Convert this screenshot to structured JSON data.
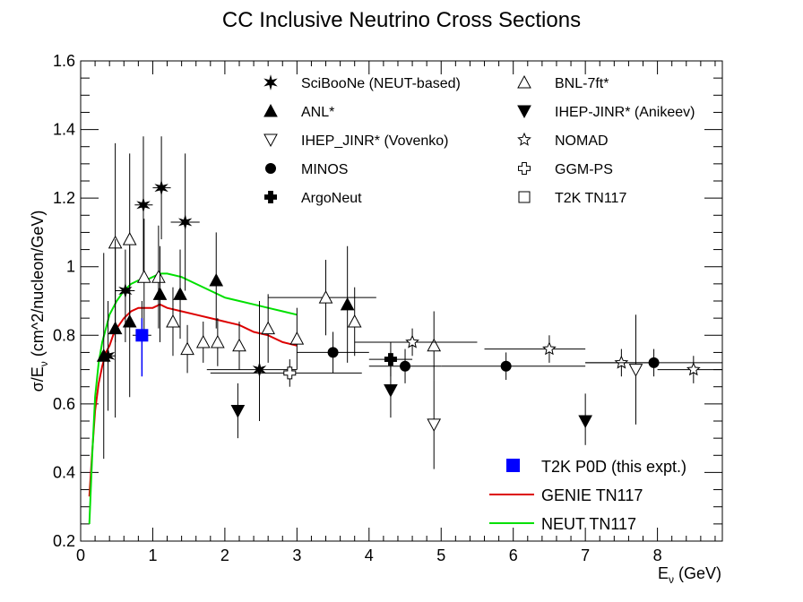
{
  "chart_data": {
    "type": "scatter",
    "title": "CC Inclusive Neutrino Cross Sections",
    "ylabel": "σ/E",
    "ylabel_sub": "ν",
    "ylabel_tail": " (cm^2/nucleon/GeV)",
    "xlabel": "E",
    "xlabel_sub": "ν",
    "xlabel_tail": " (GeV)",
    "xlim": [
      0,
      8.9
    ],
    "ylim": [
      0.2,
      1.6
    ],
    "x_ticks": [
      {
        "v": 0,
        "label": "0"
      },
      {
        "v": 1,
        "label": "1"
      },
      {
        "v": 2,
        "label": "2"
      },
      {
        "v": 3,
        "label": "3"
      },
      {
        "v": 4,
        "label": "4"
      },
      {
        "v": 5,
        "label": "5"
      },
      {
        "v": 6,
        "label": "6"
      },
      {
        "v": 7,
        "label": "7"
      },
      {
        "v": 8,
        "label": "8"
      }
    ],
    "y_ticks": [
      {
        "v": 0.2,
        "label": "0.2"
      },
      {
        "v": 0.4,
        "label": "0.4"
      },
      {
        "v": 0.6,
        "label": "0.6"
      },
      {
        "v": 0.8,
        "label": "0.8"
      },
      {
        "v": 1.0,
        "label": "1"
      },
      {
        "v": 1.2,
        "label": "1.2"
      },
      {
        "v": 1.4,
        "label": "1.4"
      },
      {
        "v": 1.6,
        "label": "1.6"
      }
    ],
    "grid": false,
    "legend_top": [
      {
        "key": "sciboone",
        "name": "SciBooNe (NEUT-based)",
        "marker": "star6",
        "fill": "#000000"
      },
      {
        "key": "bnl",
        "name": "BNL-7ft*",
        "marker": "triangle-up",
        "fill": "#ffffff"
      },
      {
        "key": "anl",
        "name": "ANL*",
        "marker": "triangle-up",
        "fill": "#000000"
      },
      {
        "key": "ihep_anikeev",
        "name": "IHEP-JINR* (Anikeev)",
        "marker": "triangle-down",
        "fill": "#000000"
      },
      {
        "key": "ihep_vovenko",
        "name": "IHEP_JINR* (Vovenko)",
        "marker": "triangle-down",
        "fill": "#ffffff"
      },
      {
        "key": "nomad",
        "name": "NOMAD",
        "marker": "star5",
        "fill": "#ffffff"
      },
      {
        "key": "minos",
        "name": "MINOS",
        "marker": "circle",
        "fill": "#000000"
      },
      {
        "key": "ggm",
        "name": "GGM-PS",
        "marker": "cross",
        "fill": "#ffffff"
      },
      {
        "key": "argoneut",
        "name": "ArgoNeut",
        "marker": "cross",
        "fill": "#000000"
      },
      {
        "key": "t2k_tn117",
        "name": "T2K TN117",
        "marker": "square",
        "fill": "#ffffff"
      }
    ],
    "legend_bottom": [
      {
        "key": "t2k_p0d",
        "name": "T2K P0D (this expt.)",
        "kind": "marker",
        "color": "#0000ff"
      },
      {
        "key": "genie",
        "name": "GENIE TN117",
        "kind": "line",
        "color": "#dd0000"
      },
      {
        "key": "neut",
        "name": "NEUT TN117",
        "kind": "line",
        "color": "#00e000"
      }
    ],
    "points": [
      {
        "series": "sciboone",
        "x": 0.38,
        "y": 0.74,
        "xlo": 0.28,
        "xhi": 0.48,
        "ylo": 0.58,
        "yhi": 0.9
      },
      {
        "series": "sciboone",
        "x": 0.62,
        "y": 0.93,
        "xlo": 0.48,
        "xhi": 0.75,
        "ylo": 0.78,
        "yhi": 1.05
      },
      {
        "series": "sciboone",
        "x": 0.87,
        "y": 1.18,
        "xlo": 0.75,
        "xhi": 1.0,
        "ylo": 0.98,
        "yhi": 1.38
      },
      {
        "series": "sciboone",
        "x": 1.12,
        "y": 1.23,
        "xlo": 1.0,
        "xhi": 1.25,
        "ylo": 1.08,
        "yhi": 1.38
      },
      {
        "series": "sciboone",
        "x": 1.45,
        "y": 1.13,
        "xlo": 1.25,
        "xhi": 1.65,
        "ylo": 0.93,
        "yhi": 1.33
      },
      {
        "series": "sciboone",
        "x": 2.48,
        "y": 0.7,
        "xlo": 1.75,
        "xhi": 3.0,
        "ylo": 0.55,
        "yhi": 0.9
      },
      {
        "series": "bnl",
        "x": 0.48,
        "y": 1.07,
        "ylo": 0.78,
        "yhi": 1.36
      },
      {
        "series": "bnl",
        "x": 0.68,
        "y": 1.08,
        "ylo": 0.83,
        "yhi": 1.33
      },
      {
        "series": "bnl",
        "x": 0.88,
        "y": 0.97,
        "ylo": 0.8,
        "yhi": 1.14
      },
      {
        "series": "bnl",
        "x": 1.08,
        "y": 0.97,
        "ylo": 0.82,
        "yhi": 1.12
      },
      {
        "series": "bnl",
        "x": 1.28,
        "y": 0.84,
        "ylo": 0.74,
        "yhi": 0.94
      },
      {
        "series": "bnl",
        "x": 1.48,
        "y": 0.76,
        "ylo": 0.69,
        "yhi": 0.83
      },
      {
        "series": "bnl",
        "x": 1.7,
        "y": 0.78,
        "ylo": 0.72,
        "yhi": 0.84
      },
      {
        "series": "bnl",
        "x": 1.9,
        "y": 0.78,
        "ylo": 0.71,
        "yhi": 0.85
      },
      {
        "series": "bnl",
        "x": 2.2,
        "y": 0.77,
        "ylo": 0.7,
        "yhi": 0.84
      },
      {
        "series": "bnl",
        "x": 2.6,
        "y": 0.82,
        "ylo": 0.72,
        "yhi": 0.92
      },
      {
        "series": "bnl",
        "x": 3.0,
        "y": 0.79,
        "ylo": 0.7,
        "yhi": 0.88
      },
      {
        "series": "bnl",
        "x": 3.4,
        "y": 0.91,
        "xlo": 2.6,
        "xhi": 4.1,
        "ylo": 0.8,
        "yhi": 1.02
      },
      {
        "series": "bnl",
        "x": 3.8,
        "y": 0.84,
        "ylo": 0.74,
        "yhi": 0.94
      },
      {
        "series": "bnl",
        "x": 4.9,
        "y": 0.77,
        "ylo": 0.67,
        "yhi": 0.87
      },
      {
        "series": "anl",
        "x": 0.32,
        "y": 0.74,
        "ylo": 0.44,
        "yhi": 1.04
      },
      {
        "series": "anl",
        "x": 0.48,
        "y": 0.82,
        "ylo": 0.56,
        "yhi": 1.08
      },
      {
        "series": "anl",
        "x": 0.68,
        "y": 0.84,
        "ylo": 0.62,
        "yhi": 1.06
      },
      {
        "series": "anl",
        "x": 1.1,
        "y": 0.92,
        "ylo": 0.78,
        "yhi": 1.06
      },
      {
        "series": "anl",
        "x": 1.38,
        "y": 0.92,
        "ylo": 0.79,
        "yhi": 1.05
      },
      {
        "series": "anl",
        "x": 1.88,
        "y": 0.96,
        "ylo": 0.82,
        "yhi": 1.1
      },
      {
        "series": "anl",
        "x": 3.7,
        "y": 0.89,
        "ylo": 0.72,
        "yhi": 1.06
      },
      {
        "series": "ihep_anikeev",
        "x": 2.18,
        "y": 0.58,
        "ylo": 0.5,
        "yhi": 0.66
      },
      {
        "series": "ihep_anikeev",
        "x": 4.3,
        "y": 0.64,
        "ylo": 0.56,
        "yhi": 0.72
      },
      {
        "series": "ihep_anikeev",
        "x": 7.0,
        "y": 0.55,
        "ylo": 0.48,
        "yhi": 0.63
      },
      {
        "series": "ihep_vovenko",
        "x": 4.9,
        "y": 0.54,
        "ylo": 0.41,
        "yhi": 0.67
      },
      {
        "series": "ihep_vovenko",
        "x": 7.7,
        "y": 0.7,
        "ylo": 0.54,
        "yhi": 0.86
      },
      {
        "series": "nomad",
        "x": 4.6,
        "y": 0.78,
        "xlo": 3.8,
        "xhi": 5.5,
        "ylo": 0.74,
        "yhi": 0.82
      },
      {
        "series": "nomad",
        "x": 6.5,
        "y": 0.76,
        "xlo": 5.6,
        "xhi": 7.0,
        "ylo": 0.72,
        "yhi": 0.8
      },
      {
        "series": "nomad",
        "x": 7.5,
        "y": 0.72,
        "xlo": 7.0,
        "xhi": 8.0,
        "ylo": 0.68,
        "yhi": 0.76
      },
      {
        "series": "nomad",
        "x": 8.5,
        "y": 0.7,
        "xlo": 8.0,
        "xhi": 8.9,
        "ylo": 0.66,
        "yhi": 0.74
      },
      {
        "series": "minos",
        "x": 3.5,
        "y": 0.75,
        "xlo": 3.0,
        "xhi": 4.0,
        "ylo": 0.69,
        "yhi": 0.81
      },
      {
        "series": "minos",
        "x": 4.5,
        "y": 0.71,
        "xlo": 4.0,
        "xhi": 5.0,
        "ylo": 0.66,
        "yhi": 0.76
      },
      {
        "series": "minos",
        "x": 5.9,
        "y": 0.71,
        "xlo": 5.0,
        "xhi": 7.0,
        "ylo": 0.67,
        "yhi": 0.75
      },
      {
        "series": "minos",
        "x": 7.95,
        "y": 0.72,
        "xlo": 7.0,
        "xhi": 8.9,
        "ylo": 0.68,
        "yhi": 0.76
      },
      {
        "series": "ggm",
        "x": 2.9,
        "y": 0.69,
        "xlo": 1.8,
        "xhi": 3.9,
        "ylo": 0.65,
        "yhi": 0.73
      },
      {
        "series": "argoneut",
        "x": 4.3,
        "y": 0.73,
        "xlo": 4.0,
        "xhi": 4.6,
        "ylo": 0.68,
        "yhi": 0.78
      },
      {
        "series": "t2k_tn117",
        "x": 0.85,
        "y": 0.8,
        "xlo": 0.72,
        "xhi": 0.98,
        "ylo": 0.7,
        "yhi": 0.9
      }
    ],
    "t2k_p0d_point": {
      "x": 0.85,
      "y": 0.8,
      "ylo": 0.68,
      "yhi": 0.85
    },
    "genie_line": {
      "x": [
        0.12,
        0.16,
        0.2,
        0.25,
        0.3,
        0.35,
        0.4,
        0.45,
        0.5,
        0.6,
        0.7,
        0.8,
        0.9,
        1.0,
        1.1,
        1.2,
        1.4,
        1.6,
        1.8,
        2.0,
        2.2,
        2.4,
        2.6,
        2.8,
        3.0
      ],
      "y": [
        0.33,
        0.46,
        0.58,
        0.66,
        0.71,
        0.75,
        0.77,
        0.8,
        0.82,
        0.85,
        0.87,
        0.88,
        0.88,
        0.88,
        0.89,
        0.88,
        0.87,
        0.86,
        0.85,
        0.84,
        0.83,
        0.81,
        0.8,
        0.78,
        0.77
      ]
    },
    "neut_line": {
      "x": [
        0.12,
        0.16,
        0.2,
        0.25,
        0.3,
        0.35,
        0.4,
        0.45,
        0.5,
        0.6,
        0.7,
        0.8,
        0.9,
        1.0,
        1.1,
        1.2,
        1.4,
        1.6,
        1.8,
        2.0,
        2.2,
        2.4,
        2.6,
        2.8,
        3.0
      ],
      "y": [
        0.25,
        0.45,
        0.62,
        0.72,
        0.78,
        0.82,
        0.86,
        0.88,
        0.9,
        0.93,
        0.95,
        0.96,
        0.96,
        0.97,
        0.98,
        0.98,
        0.97,
        0.95,
        0.93,
        0.91,
        0.9,
        0.89,
        0.88,
        0.87,
        0.86
      ]
    }
  }
}
